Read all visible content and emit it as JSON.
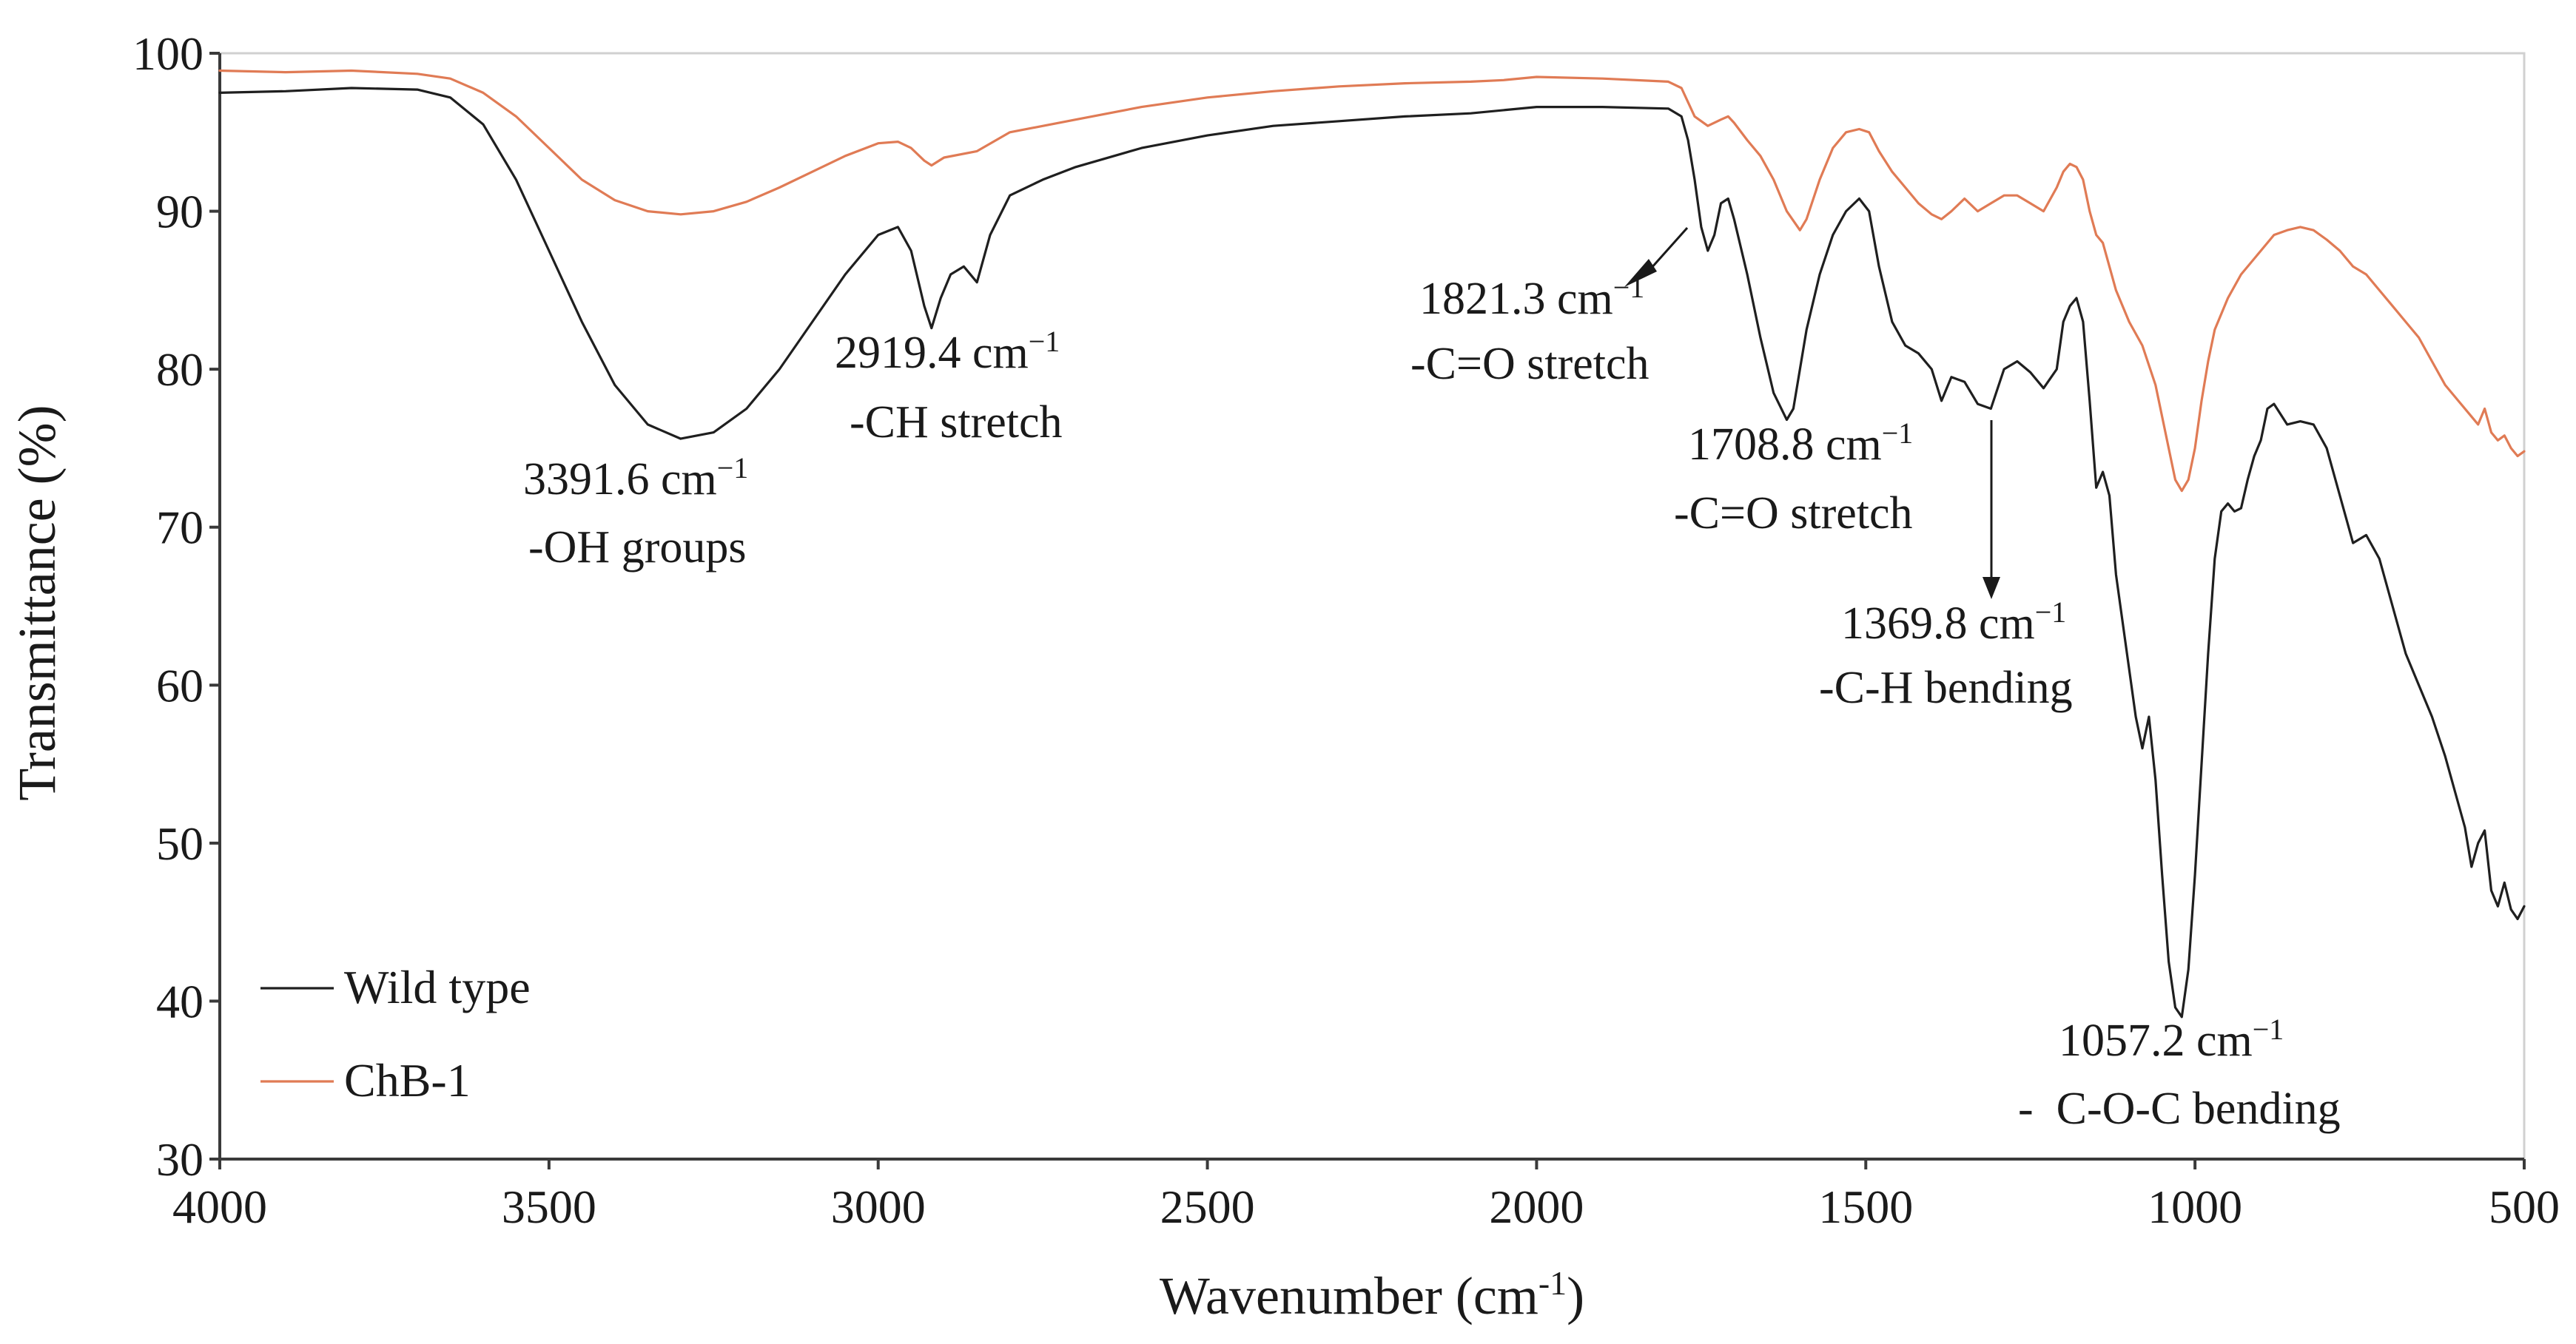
{
  "chart_data": {
    "type": "line",
    "xlabel": "Wavenumber (cm",
    "xlabel_sup": "-1",
    "xlabel_end": ")",
    "ylabel": "Transmittance (%)",
    "xlim": [
      4000,
      500
    ],
    "ylim": [
      30,
      100
    ],
    "x_ticks": [
      4000,
      3500,
      3000,
      2500,
      2000,
      1500,
      1000,
      500
    ],
    "y_ticks": [
      30,
      40,
      50,
      60,
      70,
      80,
      90,
      100
    ],
    "legend_position": "bottom-left",
    "series": [
      {
        "name": "Wild type",
        "color": "#1f1f1f",
        "points": [
          [
            4000,
            97.5
          ],
          [
            3900,
            97.6
          ],
          [
            3800,
            97.8
          ],
          [
            3700,
            97.7
          ],
          [
            3650,
            97.2
          ],
          [
            3600,
            95.5
          ],
          [
            3550,
            92
          ],
          [
            3500,
            87.5
          ],
          [
            3450,
            83
          ],
          [
            3400,
            79
          ],
          [
            3350,
            76.5
          ],
          [
            3300,
            75.6
          ],
          [
            3250,
            76
          ],
          [
            3200,
            77.5
          ],
          [
            3150,
            80
          ],
          [
            3100,
            83
          ],
          [
            3050,
            86
          ],
          [
            3000,
            88.5
          ],
          [
            2970,
            89
          ],
          [
            2950,
            87.5
          ],
          [
            2930,
            84
          ],
          [
            2919,
            82.6
          ],
          [
            2905,
            84.5
          ],
          [
            2890,
            86
          ],
          [
            2870,
            86.5
          ],
          [
            2850,
            85.5
          ],
          [
            2830,
            88.5
          ],
          [
            2800,
            91
          ],
          [
            2750,
            92
          ],
          [
            2700,
            92.8
          ],
          [
            2600,
            94
          ],
          [
            2500,
            94.8
          ],
          [
            2400,
            95.4
          ],
          [
            2300,
            95.7
          ],
          [
            2200,
            96
          ],
          [
            2100,
            96.2
          ],
          [
            2000,
            96.6
          ],
          [
            1900,
            96.6
          ],
          [
            1800,
            96.5
          ],
          [
            1780,
            96
          ],
          [
            1770,
            94.5
          ],
          [
            1760,
            92
          ],
          [
            1750,
            89
          ],
          [
            1740,
            87.5
          ],
          [
            1730,
            88.5
          ],
          [
            1720,
            90.5
          ],
          [
            1709,
            90.8
          ],
          [
            1700,
            89.5
          ],
          [
            1680,
            86
          ],
          [
            1660,
            82
          ],
          [
            1640,
            78.5
          ],
          [
            1620,
            76.8
          ],
          [
            1610,
            77.5
          ],
          [
            1590,
            82.5
          ],
          [
            1570,
            86
          ],
          [
            1550,
            88.5
          ],
          [
            1530,
            90
          ],
          [
            1510,
            90.8
          ],
          [
            1495,
            90
          ],
          [
            1480,
            86.5
          ],
          [
            1460,
            83
          ],
          [
            1440,
            81.5
          ],
          [
            1420,
            81
          ],
          [
            1400,
            80
          ],
          [
            1385,
            78
          ],
          [
            1370,
            79.5
          ],
          [
            1350,
            79.2
          ],
          [
            1330,
            77.8
          ],
          [
            1310,
            77.5
          ],
          [
            1290,
            80
          ],
          [
            1270,
            80.5
          ],
          [
            1250,
            79.8
          ],
          [
            1230,
            78.8
          ],
          [
            1210,
            80
          ],
          [
            1200,
            83
          ],
          [
            1190,
            84
          ],
          [
            1180,
            84.5
          ],
          [
            1170,
            83
          ],
          [
            1160,
            78
          ],
          [
            1150,
            72.5
          ],
          [
            1140,
            73.5
          ],
          [
            1130,
            72
          ],
          [
            1120,
            67
          ],
          [
            1110,
            64
          ],
          [
            1100,
            61
          ],
          [
            1090,
            58
          ],
          [
            1080,
            56
          ],
          [
            1070,
            58
          ],
          [
            1060,
            54
          ],
          [
            1050,
            48
          ],
          [
            1040,
            42.5
          ],
          [
            1030,
            39.6
          ],
          [
            1020,
            39
          ],
          [
            1010,
            42
          ],
          [
            1000,
            48
          ],
          [
            990,
            55
          ],
          [
            980,
            62
          ],
          [
            970,
            68
          ],
          [
            960,
            71
          ],
          [
            950,
            71.5
          ],
          [
            940,
            71
          ],
          [
            930,
            71.2
          ],
          [
            920,
            73
          ],
          [
            910,
            74.5
          ],
          [
            900,
            75.5
          ],
          [
            890,
            77.5
          ],
          [
            880,
            77.8
          ],
          [
            860,
            76.5
          ],
          [
            840,
            76.7
          ],
          [
            820,
            76.5
          ],
          [
            800,
            75
          ],
          [
            780,
            72
          ],
          [
            760,
            69
          ],
          [
            740,
            69.5
          ],
          [
            720,
            68
          ],
          [
            700,
            65
          ],
          [
            680,
            62
          ],
          [
            660,
            60
          ],
          [
            640,
            58
          ],
          [
            620,
            55.5
          ],
          [
            600,
            52.5
          ],
          [
            590,
            51
          ],
          [
            580,
            48.5
          ],
          [
            570,
            50
          ],
          [
            560,
            50.8
          ],
          [
            550,
            47
          ],
          [
            540,
            46
          ],
          [
            530,
            47.5
          ],
          [
            520,
            45.8
          ],
          [
            510,
            45.2
          ],
          [
            500,
            46
          ]
        ]
      },
      {
        "name": "ChB-1",
        "color": "#e07b55",
        "points": [
          [
            4000,
            98.9
          ],
          [
            3900,
            98.8
          ],
          [
            3800,
            98.9
          ],
          [
            3700,
            98.7
          ],
          [
            3650,
            98.4
          ],
          [
            3600,
            97.5
          ],
          [
            3550,
            96
          ],
          [
            3500,
            94
          ],
          [
            3450,
            92
          ],
          [
            3400,
            90.7
          ],
          [
            3350,
            90
          ],
          [
            3300,
            89.8
          ],
          [
            3250,
            90
          ],
          [
            3200,
            90.6
          ],
          [
            3150,
            91.5
          ],
          [
            3100,
            92.5
          ],
          [
            3050,
            93.5
          ],
          [
            3000,
            94.3
          ],
          [
            2970,
            94.4
          ],
          [
            2950,
            94
          ],
          [
            2930,
            93.2
          ],
          [
            2919,
            92.9
          ],
          [
            2900,
            93.4
          ],
          [
            2850,
            93.8
          ],
          [
            2800,
            95
          ],
          [
            2700,
            95.8
          ],
          [
            2600,
            96.6
          ],
          [
            2500,
            97.2
          ],
          [
            2400,
            97.6
          ],
          [
            2300,
            97.9
          ],
          [
            2200,
            98.1
          ],
          [
            2100,
            98.2
          ],
          [
            2050,
            98.3
          ],
          [
            2000,
            98.5
          ],
          [
            1900,
            98.4
          ],
          [
            1800,
            98.2
          ],
          [
            1780,
            97.8
          ],
          [
            1760,
            96
          ],
          [
            1740,
            95.4
          ],
          [
            1720,
            95.8
          ],
          [
            1709,
            96
          ],
          [
            1700,
            95.6
          ],
          [
            1680,
            94.5
          ],
          [
            1660,
            93.5
          ],
          [
            1640,
            92
          ],
          [
            1620,
            90
          ],
          [
            1600,
            88.8
          ],
          [
            1590,
            89.5
          ],
          [
            1570,
            92
          ],
          [
            1550,
            94
          ],
          [
            1530,
            95
          ],
          [
            1510,
            95.2
          ],
          [
            1495,
            95
          ],
          [
            1480,
            93.8
          ],
          [
            1460,
            92.5
          ],
          [
            1440,
            91.5
          ],
          [
            1420,
            90.5
          ],
          [
            1400,
            89.8
          ],
          [
            1385,
            89.5
          ],
          [
            1370,
            90
          ],
          [
            1350,
            90.8
          ],
          [
            1330,
            90
          ],
          [
            1310,
            90.5
          ],
          [
            1290,
            91
          ],
          [
            1270,
            91
          ],
          [
            1250,
            90.5
          ],
          [
            1230,
            90
          ],
          [
            1210,
            91.5
          ],
          [
            1200,
            92.5
          ],
          [
            1190,
            93
          ],
          [
            1180,
            92.8
          ],
          [
            1170,
            92
          ],
          [
            1160,
            90
          ],
          [
            1150,
            88.5
          ],
          [
            1140,
            88
          ],
          [
            1130,
            86.5
          ],
          [
            1120,
            85
          ],
          [
            1100,
            83
          ],
          [
            1080,
            81.5
          ],
          [
            1060,
            79
          ],
          [
            1050,
            77
          ],
          [
            1040,
            75
          ],
          [
            1030,
            73
          ],
          [
            1020,
            72.3
          ],
          [
            1010,
            73
          ],
          [
            1000,
            75
          ],
          [
            990,
            78
          ],
          [
            980,
            80.5
          ],
          [
            970,
            82.5
          ],
          [
            950,
            84.5
          ],
          [
            930,
            86
          ],
          [
            900,
            87.5
          ],
          [
            880,
            88.5
          ],
          [
            860,
            88.8
          ],
          [
            840,
            89
          ],
          [
            820,
            88.8
          ],
          [
            800,
            88.2
          ],
          [
            780,
            87.5
          ],
          [
            760,
            86.5
          ],
          [
            740,
            86
          ],
          [
            720,
            85
          ],
          [
            700,
            84
          ],
          [
            680,
            83
          ],
          [
            660,
            82
          ],
          [
            640,
            80.5
          ],
          [
            620,
            79
          ],
          [
            600,
            78
          ],
          [
            580,
            77
          ],
          [
            570,
            76.5
          ],
          [
            560,
            77.5
          ],
          [
            550,
            76
          ],
          [
            540,
            75.5
          ],
          [
            530,
            75.8
          ],
          [
            520,
            75
          ],
          [
            510,
            74.5
          ],
          [
            500,
            74.8
          ]
        ]
      }
    ],
    "annotations": [
      {
        "value": "3391.6 cm",
        "sup": "−1",
        "desc": "-OH groups"
      },
      {
        "value": "2919.4 cm",
        "sup": "−1",
        "desc": "-CH stretch"
      },
      {
        "value": "1821.3 cm",
        "sup": "−1",
        "desc": "-C=O stretch"
      },
      {
        "value": "1708.8 cm",
        "sup": "−1",
        "desc": "-C=O stretch"
      },
      {
        "value": "1369.8 cm",
        "sup": "−1",
        "desc": "-C-H bending"
      },
      {
        "value": "1057.2 cm",
        "sup": "−1",
        "desc": "-  C-O-C bending"
      }
    ]
  }
}
